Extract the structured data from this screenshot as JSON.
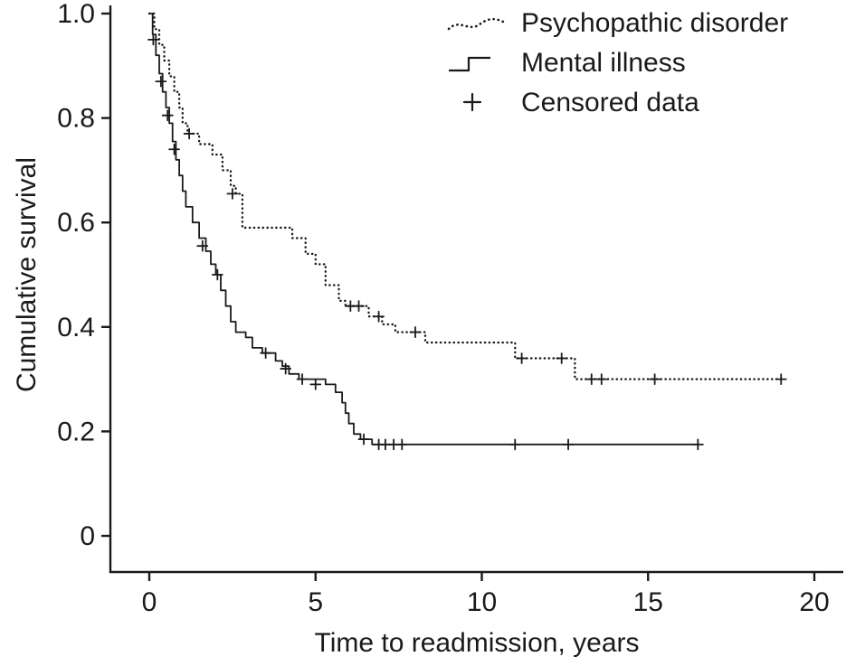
{
  "figure": {
    "kind": "Kaplan-Meier survival plot",
    "background": "#ffffff"
  },
  "chart_data": {
    "type": "line",
    "subtype": "kaplan-meier-step",
    "title": "",
    "xlabel": "Time to readmission, years",
    "ylabel": "Cumulative survival",
    "xlim": [
      0,
      20
    ],
    "ylim": [
      0,
      1.0
    ],
    "grid": false,
    "legend_position": "top-right",
    "line_color": "#1a1a1a",
    "censored_label": "Censored data",
    "censored_marker": "+",
    "xticks": [
      {
        "value": 0,
        "label": "0"
      },
      {
        "value": 5,
        "label": "5"
      },
      {
        "value": 10,
        "label": "10"
      },
      {
        "value": 15,
        "label": "15"
      },
      {
        "value": 20,
        "label": "20"
      }
    ],
    "yticks": [
      {
        "value": 0,
        "label": "0"
      },
      {
        "value": 0.2,
        "label": "0.2"
      },
      {
        "value": 0.4,
        "label": "0.4"
      },
      {
        "value": 0.6,
        "label": "0.6"
      },
      {
        "value": 0.8,
        "label": "0.8"
      },
      {
        "value": 1.0,
        "label": "1.0"
      }
    ],
    "series": [
      {
        "name": "Psychopathic disorder",
        "style": "dotted",
        "steps": [
          [
            0,
            1.0
          ],
          [
            0.15,
            0.97
          ],
          [
            0.3,
            0.94
          ],
          [
            0.45,
            0.91
          ],
          [
            0.6,
            0.88
          ],
          [
            0.75,
            0.85
          ],
          [
            0.9,
            0.82
          ],
          [
            1.0,
            0.79
          ],
          [
            1.15,
            0.77
          ],
          [
            1.5,
            0.75
          ],
          [
            1.9,
            0.73
          ],
          [
            2.2,
            0.7
          ],
          [
            2.45,
            0.67
          ],
          [
            2.6,
            0.655
          ],
          [
            2.8,
            0.59
          ],
          [
            4.3,
            0.57
          ],
          [
            4.7,
            0.54
          ],
          [
            5.0,
            0.52
          ],
          [
            5.3,
            0.48
          ],
          [
            5.7,
            0.45
          ],
          [
            5.9,
            0.44
          ],
          [
            6.6,
            0.42
          ],
          [
            7.0,
            0.405
          ],
          [
            7.4,
            0.39
          ],
          [
            8.3,
            0.37
          ],
          [
            11.0,
            0.34
          ],
          [
            12.8,
            0.3
          ],
          [
            19.0,
            0.3
          ]
        ],
        "censored": [
          [
            1.2,
            0.77
          ],
          [
            2.5,
            0.655
          ],
          [
            6.05,
            0.44
          ],
          [
            6.3,
            0.44
          ],
          [
            6.9,
            0.42
          ],
          [
            8.0,
            0.39
          ],
          [
            11.2,
            0.34
          ],
          [
            12.4,
            0.34
          ],
          [
            13.3,
            0.3
          ],
          [
            13.6,
            0.3
          ],
          [
            15.2,
            0.3
          ],
          [
            19.0,
            0.3
          ]
        ]
      },
      {
        "name": "Mental illness",
        "style": "solid",
        "steps": [
          [
            0,
            1.0
          ],
          [
            0.1,
            0.96
          ],
          [
            0.2,
            0.92
          ],
          [
            0.3,
            0.885
          ],
          [
            0.4,
            0.85
          ],
          [
            0.5,
            0.82
          ],
          [
            0.6,
            0.79
          ],
          [
            0.7,
            0.755
          ],
          [
            0.8,
            0.72
          ],
          [
            0.9,
            0.69
          ],
          [
            1.0,
            0.66
          ],
          [
            1.1,
            0.63
          ],
          [
            1.3,
            0.6
          ],
          [
            1.5,
            0.57
          ],
          [
            1.7,
            0.545
          ],
          [
            1.85,
            0.52
          ],
          [
            2.0,
            0.5
          ],
          [
            2.15,
            0.47
          ],
          [
            2.3,
            0.44
          ],
          [
            2.45,
            0.41
          ],
          [
            2.6,
            0.39
          ],
          [
            2.9,
            0.38
          ],
          [
            3.1,
            0.36
          ],
          [
            3.4,
            0.35
          ],
          [
            3.8,
            0.335
          ],
          [
            4.0,
            0.325
          ],
          [
            4.2,
            0.31
          ],
          [
            4.5,
            0.3
          ],
          [
            5.3,
            0.29
          ],
          [
            5.6,
            0.275
          ],
          [
            5.8,
            0.255
          ],
          [
            5.9,
            0.235
          ],
          [
            6.0,
            0.215
          ],
          [
            6.15,
            0.195
          ],
          [
            6.35,
            0.185
          ],
          [
            6.7,
            0.175
          ],
          [
            16.5,
            0.175
          ]
        ],
        "censored": [
          [
            0.12,
            0.95
          ],
          [
            0.35,
            0.87
          ],
          [
            0.55,
            0.805
          ],
          [
            0.75,
            0.74
          ],
          [
            1.6,
            0.555
          ],
          [
            2.05,
            0.5
          ],
          [
            3.5,
            0.35
          ],
          [
            4.1,
            0.32
          ],
          [
            4.6,
            0.3
          ],
          [
            5.0,
            0.29
          ],
          [
            6.45,
            0.185
          ],
          [
            6.9,
            0.175
          ],
          [
            7.1,
            0.175
          ],
          [
            7.35,
            0.175
          ],
          [
            7.6,
            0.175
          ],
          [
            11.0,
            0.175
          ],
          [
            12.6,
            0.175
          ],
          [
            16.5,
            0.175
          ]
        ]
      }
    ]
  }
}
